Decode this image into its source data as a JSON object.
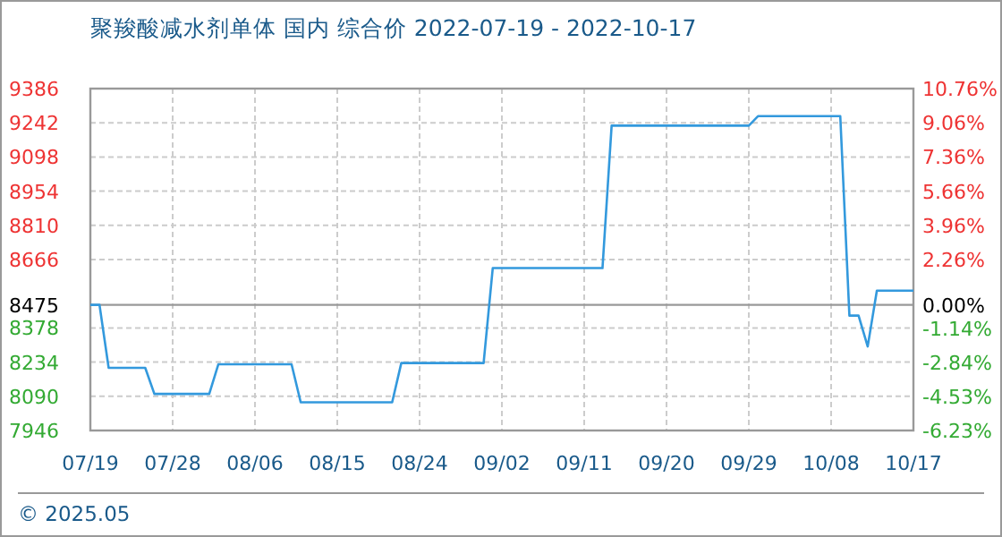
{
  "chart_data": {
    "type": "line",
    "title": "聚羧酸减水剂单体 国内 综合价 2022-07-19 - 2022-10-17",
    "x": [
      "2022-07-19",
      "2022-07-20",
      "2022-07-21",
      "2022-07-25",
      "2022-07-26",
      "2022-08-01",
      "2022-08-02",
      "2022-08-10",
      "2022-08-11",
      "2022-08-21",
      "2022-08-22",
      "2022-08-31",
      "2022-09-01",
      "2022-09-13",
      "2022-09-14",
      "2022-09-29",
      "2022-09-30",
      "2022-10-09",
      "2022-10-10",
      "2022-10-11",
      "2022-10-12",
      "2022-10-13",
      "2022-10-17"
    ],
    "series": [
      {
        "color": "#3399dd",
        "values": [
          8475,
          8475,
          8210,
          8210,
          8100,
          8100,
          8225,
          8225,
          8065,
          8065,
          8230,
          8230,
          8630,
          8630,
          9230,
          9230,
          9270,
          9270,
          8430,
          8430,
          8300,
          8535,
          8535
        ]
      }
    ],
    "xlim": [
      "2022-07-19",
      "2022-10-17"
    ],
    "xticks": [
      {
        "value": "2022-07-19",
        "label": "07/19"
      },
      {
        "value": "2022-07-28",
        "label": "07/28"
      },
      {
        "value": "2022-08-06",
        "label": "08/06"
      },
      {
        "value": "2022-08-15",
        "label": "08/15"
      },
      {
        "value": "2022-08-24",
        "label": "08/24"
      },
      {
        "value": "2022-09-02",
        "label": "09/02"
      },
      {
        "value": "2022-09-11",
        "label": "09/11"
      },
      {
        "value": "2022-09-20",
        "label": "09/20"
      },
      {
        "value": "2022-09-29",
        "label": "09/29"
      },
      {
        "value": "2022-10-08",
        "label": "10/08"
      },
      {
        "value": "2022-10-17",
        "label": "10/17"
      }
    ],
    "ylim": [
      7946,
      9386
    ],
    "yticks": [
      7946,
      8090,
      8234,
      8378,
      8475,
      8666,
      8810,
      8954,
      9098,
      9242,
      9386
    ],
    "y2lim": [
      -6.23,
      10.76
    ],
    "y2ticks": [
      {
        "value": -6.23,
        "label": "-6.23%"
      },
      {
        "value": -4.53,
        "label": "-4.53%"
      },
      {
        "value": -2.84,
        "label": "-2.84%"
      },
      {
        "value": -1.14,
        "label": "-1.14%"
      },
      {
        "value": 0,
        "label": "0.00%"
      },
      {
        "value": 2.26,
        "label": "2.26%"
      },
      {
        "value": 3.96,
        "label": "3.96%"
      },
      {
        "value": 5.66,
        "label": "5.66%"
      },
      {
        "value": 7.36,
        "label": "7.36%"
      },
      {
        "value": 9.06,
        "label": "9.06%"
      },
      {
        "value": 10.76,
        "label": "10.76%"
      }
    ],
    "ref_lines": [
      {
        "axis": "y",
        "value": 8475,
        "color": "#999999"
      }
    ],
    "grid": true,
    "marker": "none",
    "line_style": "solid",
    "annotations": [
      "© 2025.05"
    ]
  }
}
